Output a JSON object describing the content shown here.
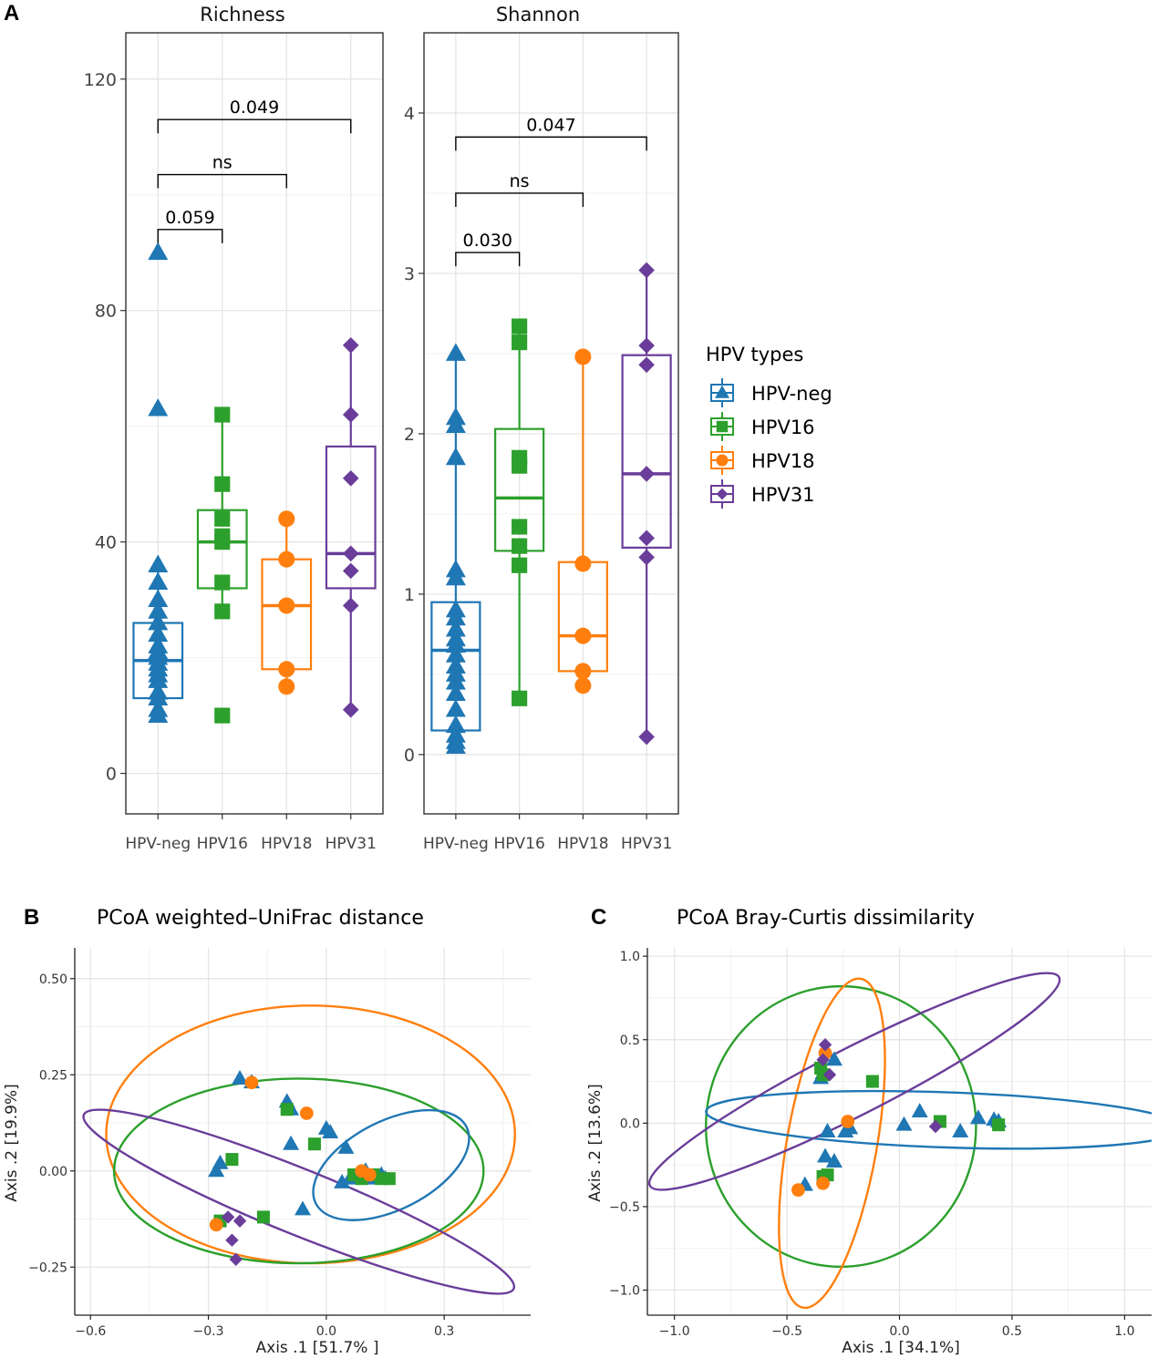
{
  "panel_labels": {
    "a": "A",
    "b": "B",
    "c": "C"
  },
  "colors": {
    "HPV-neg": "#1f77b4",
    "HPV16": "#2ca02c",
    "HPV18": "#ff7f0e",
    "HPV31": "#6a3d9a"
  },
  "legend": {
    "title": "HPV types",
    "items": [
      {
        "label": "HPV-neg",
        "shape": "triangle-icon"
      },
      {
        "label": "HPV16",
        "shape": "square-icon"
      },
      {
        "label": "HPV18",
        "shape": "circle-icon"
      },
      {
        "label": "HPV31",
        "shape": "diamond-icon"
      }
    ]
  },
  "chart_data": [
    {
      "type": "box",
      "title": "Richness",
      "categories": [
        "HPV-neg",
        "HPV16",
        "HPV18",
        "HPV31"
      ],
      "ylim": [
        -7,
        128
      ],
      "yticks": [
        0,
        40,
        80,
        120
      ],
      "ytick_labels": [
        "0",
        "40",
        "80",
        "120"
      ],
      "boxes": [
        {
          "q1": 13,
          "median": 19.5,
          "q3": 26,
          "lo": 9.5,
          "hi": 36.5
        },
        {
          "q1": 32,
          "median": 40,
          "q3": 45.5,
          "lo": 28,
          "hi": 62
        },
        {
          "q1": 18,
          "median": 29,
          "q3": 37,
          "lo": 15,
          "hi": 44
        },
        {
          "q1": 32,
          "median": 38,
          "q3": 56.5,
          "lo": 11,
          "hi": 74
        }
      ],
      "points": [
        [
          90,
          63,
          36,
          33,
          30,
          28,
          26,
          24,
          22,
          21,
          20,
          19,
          18,
          17,
          16,
          14,
          13,
          11,
          10
        ],
        [
          62,
          50,
          44,
          41,
          40,
          33,
          28,
          10
        ],
        [
          44,
          37,
          29,
          18,
          15
        ],
        [
          74,
          62,
          51,
          38,
          35,
          29,
          11
        ]
      ],
      "comparisons": [
        {
          "groups": [
            "HPV-neg",
            "HPV16"
          ],
          "label": "0.059",
          "y": 94
        },
        {
          "groups": [
            "HPV-neg",
            "HPV18"
          ],
          "label": "ns",
          "y": 103.5
        },
        {
          "groups": [
            "HPV-neg",
            "HPV31"
          ],
          "label": "0.049",
          "y": 113
        }
      ]
    },
    {
      "type": "box",
      "title": "Shannon",
      "categories": [
        "HPV-neg",
        "HPV16",
        "HPV18",
        "HPV31"
      ],
      "ylim": [
        -0.37,
        4.5
      ],
      "yticks": [
        0,
        1,
        2,
        3,
        4
      ],
      "ytick_labels": [
        "0",
        "1",
        "2",
        "3",
        "4"
      ],
      "boxes": [
        {
          "q1": 0.15,
          "median": 0.65,
          "q3": 0.95,
          "lo": 0.05,
          "hi": 2.5
        },
        {
          "q1": 1.27,
          "median": 1.6,
          "q3": 2.03,
          "lo": 0.35,
          "hi": 2.67
        },
        {
          "q1": 0.52,
          "median": 0.74,
          "q3": 1.2,
          "lo": 0.43,
          "hi": 2.48
        },
        {
          "q1": 1.29,
          "median": 1.75,
          "q3": 2.49,
          "lo": 0.11,
          "hi": 3.02
        }
      ],
      "points": [
        [
          2.5,
          2.1,
          2.05,
          1.85,
          1.15,
          1.1,
          0.9,
          0.85,
          0.78,
          0.72,
          0.68,
          0.62,
          0.55,
          0.5,
          0.45,
          0.38,
          0.28,
          0.18,
          0.12,
          0.08,
          0.05
        ],
        [
          2.67,
          2.57,
          1.85,
          1.8,
          1.42,
          1.3,
          1.18,
          0.35
        ],
        [
          2.48,
          1.19,
          0.74,
          0.52,
          0.43
        ],
        [
          3.02,
          2.55,
          2.43,
          1.75,
          1.35,
          1.23,
          0.11
        ]
      ],
      "comparisons": [
        {
          "groups": [
            "HPV-neg",
            "HPV16"
          ],
          "label": "0.030",
          "y": 3.13
        },
        {
          "groups": [
            "HPV-neg",
            "HPV18"
          ],
          "label": "ns",
          "y": 3.5
        },
        {
          "groups": [
            "HPV-neg",
            "HPV31"
          ],
          "label": "0.047",
          "y": 3.85
        }
      ]
    },
    {
      "type": "scatter",
      "title": "PCoA weighted–UniFrac distance",
      "xlabel": "Axis .1   [51.7% ]",
      "ylabel": "Axis .2   [19.9%]",
      "xlim": [
        -0.64,
        0.52
      ],
      "ylim": [
        -0.375,
        0.58
      ],
      "xticks": [
        -0.6,
        -0.3,
        0.0,
        0.3
      ],
      "xtick_labels": [
        "−0.6",
        "−0.3",
        "0.0",
        "0.3"
      ],
      "yticks": [
        -0.25,
        0.0,
        0.25,
        0.5
      ],
      "ytick_labels": [
        "−0.25",
        "0.00",
        "0.25",
        "0.50"
      ],
      "points": {
        "HPV-neg": [
          [
            -0.22,
            0.24
          ],
          [
            -0.19,
            0.23
          ],
          [
            -0.1,
            0.18
          ],
          [
            -0.09,
            0.16
          ],
          [
            -0.27,
            0.02
          ],
          [
            -0.28,
            0.0
          ],
          [
            -0.09,
            0.07
          ],
          [
            0.0,
            0.11
          ],
          [
            0.01,
            0.1
          ],
          [
            0.05,
            0.06
          ],
          [
            0.04,
            -0.03
          ],
          [
            0.06,
            -0.02
          ],
          [
            0.08,
            -0.01
          ],
          [
            0.1,
            0.0
          ],
          [
            0.12,
            -0.02
          ],
          [
            0.14,
            -0.01
          ],
          [
            0.15,
            -0.02
          ],
          [
            -0.06,
            -0.1
          ]
        ],
        "HPV16": [
          [
            -0.1,
            0.16
          ],
          [
            -0.24,
            0.03
          ],
          [
            -0.03,
            0.07
          ],
          [
            -0.27,
            -0.13
          ],
          [
            -0.16,
            -0.12
          ],
          [
            0.07,
            -0.01
          ],
          [
            0.09,
            -0.02
          ],
          [
            0.12,
            -0.01
          ],
          [
            0.14,
            -0.02
          ],
          [
            0.16,
            -0.02
          ]
        ],
        "HPV18": [
          [
            -0.19,
            0.23
          ],
          [
            -0.05,
            0.15
          ],
          [
            -0.28,
            -0.14
          ],
          [
            0.09,
            0.0
          ],
          [
            0.11,
            -0.01
          ]
        ],
        "HPV31": [
          [
            -0.25,
            -0.12
          ],
          [
            -0.22,
            -0.13
          ],
          [
            -0.24,
            -0.18
          ],
          [
            -0.23,
            -0.23
          ]
        ]
      },
      "ellipses": {
        "HPV18": {
          "cx": -0.04,
          "cy": 0.095,
          "rx": 0.52,
          "ry": 0.335,
          "angle_deg": 0
        },
        "HPV16": {
          "cx": -0.07,
          "cy": 0.0,
          "rx": 0.47,
          "ry": 0.24,
          "angle_deg": 0
        },
        "HPV-neg": {
          "cx": 0.165,
          "cy": 0.015,
          "rx": 0.215,
          "ry": 0.115,
          "angle_deg": -27
        },
        "HPV31": {
          "cx": -0.07,
          "cy": -0.08,
          "rx": 0.59,
          "ry": 0.085,
          "angle_deg": 22
        }
      }
    },
    {
      "type": "scatter",
      "title": "PCoA Bray-Curtis dissimilarity",
      "xlabel": "Axis .1   [34.1%]",
      "ylabel": "Axis .2   [13.6%]",
      "xlim": [
        -1.12,
        1.12
      ],
      "ylim": [
        -1.15,
        1.05
      ],
      "xticks": [
        -1.0,
        -0.5,
        0.0,
        0.5,
        1.0
      ],
      "xtick_labels": [
        "−1.0",
        "−0.5",
        "0.0",
        "0.5",
        "1.0"
      ],
      "yticks": [
        -1.0,
        -0.5,
        0.0,
        0.5,
        1.0
      ],
      "ytick_labels": [
        "−1.0",
        "−0.5",
        "0.0",
        "0.5",
        "1.0"
      ],
      "points": {
        "HPV-neg": [
          [
            -0.35,
            0.27
          ],
          [
            -0.34,
            0.3
          ],
          [
            -0.29,
            0.38
          ],
          [
            -0.32,
            -0.05
          ],
          [
            -0.33,
            -0.2
          ],
          [
            -0.29,
            -0.23
          ],
          [
            -0.22,
            -0.03
          ],
          [
            -0.24,
            -0.05
          ],
          [
            0.02,
            -0.01
          ],
          [
            0.09,
            0.07
          ],
          [
            0.27,
            -0.05
          ],
          [
            0.35,
            0.03
          ],
          [
            0.42,
            0.02
          ],
          [
            0.44,
            0.01
          ],
          [
            -0.42,
            -0.37
          ]
        ],
        "HPV16": [
          [
            -0.35,
            0.33
          ],
          [
            -0.34,
            0.29
          ],
          [
            -0.12,
            0.25
          ],
          [
            0.18,
            0.01
          ],
          [
            -0.34,
            -0.32
          ],
          [
            -0.32,
            -0.31
          ],
          [
            0.44,
            -0.01
          ]
        ],
        "HPV18": [
          [
            -0.33,
            0.42
          ],
          [
            -0.23,
            0.01
          ],
          [
            -0.45,
            -0.4
          ],
          [
            -0.34,
            -0.36
          ]
        ],
        "HPV31": [
          [
            -0.33,
            0.47
          ],
          [
            -0.34,
            0.38
          ],
          [
            -0.31,
            0.29
          ],
          [
            0.16,
            -0.02
          ]
        ]
      },
      "ellipses": {
        "HPV16": {
          "cx": -0.26,
          "cy": -0.02,
          "rx": 0.6,
          "ry": 0.84,
          "angle_deg": 0
        },
        "HPV18": {
          "cx": -0.3,
          "cy": -0.12,
          "rx": 0.2,
          "ry": 1.0,
          "angle_deg": 10
        },
        "HPV-neg": {
          "cx": 0.2,
          "cy": 0.02,
          "rx": 1.06,
          "ry": 0.165,
          "angle_deg": 2
        },
        "HPV31": {
          "cx": -0.2,
          "cy": 0.25,
          "rx": 1.02,
          "ry": 0.2,
          "angle_deg": -27
        }
      }
    }
  ]
}
